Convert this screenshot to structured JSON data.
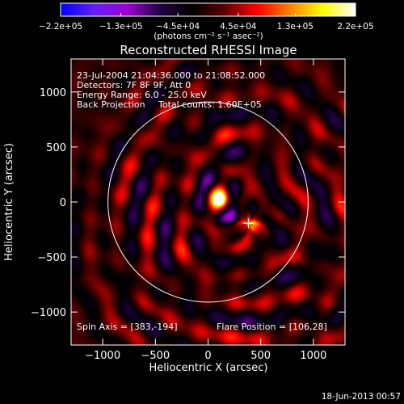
{
  "chart_data": {
    "type": "heatmap",
    "title": "Reconstructed RHESSI Image",
    "xlabel": "Heliocentric X (arcsec)",
    "ylabel": "Heliocentric Y (arcsec)",
    "xlim": [
      -1300,
      1300
    ],
    "ylim": [
      -1300,
      1300
    ],
    "x_ticks": [
      -1000,
      -500,
      0,
      500,
      1000
    ],
    "x_tick_labels": [
      "−1000",
      "−500",
      "0",
      "500",
      "1000"
    ],
    "y_ticks": [
      -1000,
      -500,
      0,
      500,
      1000
    ],
    "y_tick_labels": [
      "−1000",
      "−500",
      "0",
      "500",
      "1000"
    ],
    "colorbar": {
      "min": -220000,
      "max": 220000,
      "ticks": [
        -220000,
        -130000,
        -45000,
        45000,
        130000,
        220000
      ],
      "tick_labels": [
        "−2.2e+05",
        "−1.3e+05",
        "−4.5e+04",
        "4.5e+04",
        "1.3e+05",
        "2.2e+05"
      ],
      "unit_label": "(photons cm⁻² s⁻¹ asec⁻²)",
      "colormap": [
        "#0000ff",
        "#6020ff",
        "#a000d0",
        "#220044",
        "#000000",
        "#5a0000",
        "#ff0000",
        "#ff8000",
        "#ffff00",
        "#ffffff"
      ]
    },
    "solar_limb": {
      "cx": 0,
      "cy": 0,
      "r": 950,
      "color": "#ffffff"
    },
    "spin_axis_marker": {
      "x": 383,
      "y": -194,
      "symbol": "+"
    },
    "sources": [
      {
        "x": 106,
        "y": 28,
        "peak": 220000
      },
      {
        "x": 420,
        "y": -220,
        "peak": 150000
      }
    ],
    "annotations": {
      "time_range": "23-Jul-2004 21:04:36.000 to 21:08:52.000",
      "detectors": "Detectors: 7F 8F 9F, Att 0",
      "energy_range": "Energy Range: 6.0 - 25.0 keV",
      "method": "Back Projection",
      "total_counts": "Total counts: 1.60E+05",
      "spin_axis": "Spin Axis = [383,-194]",
      "flare_position": "Flare Position = [106,28]"
    },
    "footer_date": "18-Jun-2013 00:57"
  }
}
